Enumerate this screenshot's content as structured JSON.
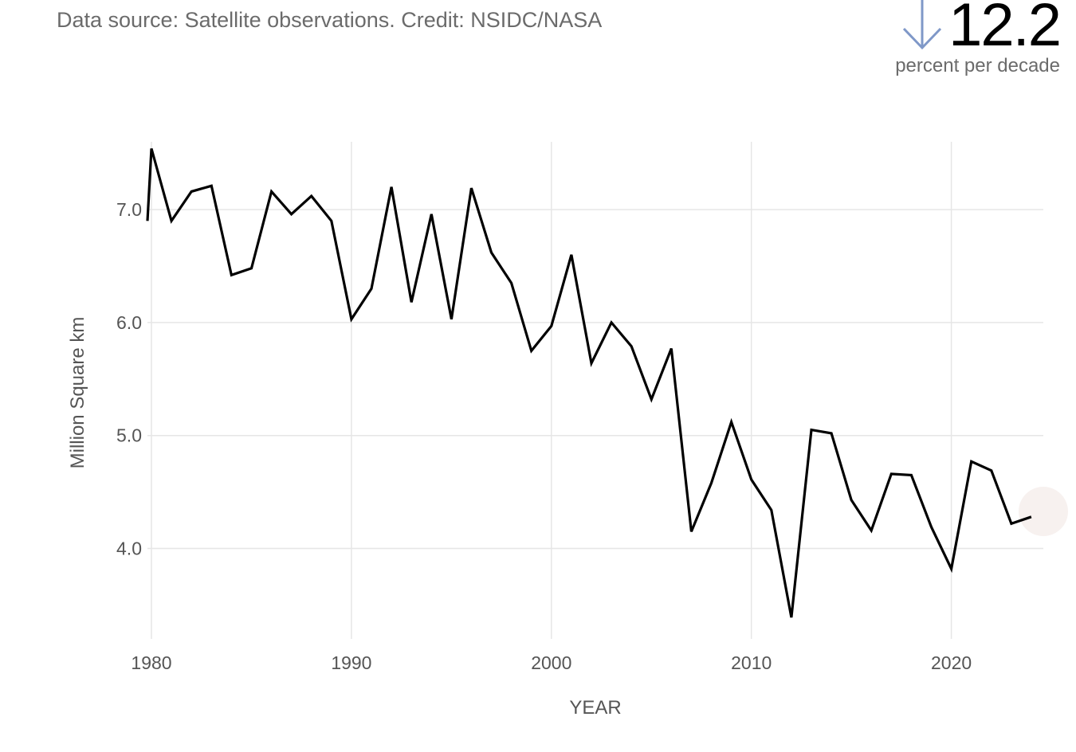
{
  "header": {
    "source": "Data source: Satellite observations. Credit: NSIDC/NASA",
    "stat_value": "12.2",
    "stat_unit": "percent per decade",
    "stat_direction": "down",
    "arrow_color": "#7f98c8"
  },
  "chart_data": {
    "type": "line",
    "title": "",
    "xlabel": "YEAR",
    "ylabel": "Million Square km",
    "xlim": [
      1979.8,
      2024.6
    ],
    "ylim": [
      3.2,
      7.6
    ],
    "xticks": [
      1980,
      1990,
      2000,
      2010,
      2020
    ],
    "yticks": [
      4.0,
      5.0,
      6.0,
      7.0
    ],
    "ytick_labels": [
      "4.0",
      "5.0",
      "6.0",
      "7.0"
    ],
    "grid": true,
    "line_color": "#000000",
    "grid_color": "#e6e6e6",
    "series": [
      {
        "x": [
          1979,
          1980,
          1981,
          1982,
          1983,
          1984,
          1985,
          1986,
          1987,
          1988,
          1989,
          1990,
          1991,
          1992,
          1993,
          1994,
          1995,
          1996,
          1997,
          1998,
          1999,
          2000,
          2001,
          2002,
          2003,
          2004,
          2005,
          2006,
          2007,
          2008,
          2009,
          2010,
          2011,
          2012,
          2013,
          2014,
          2015,
          2016,
          2017,
          2018,
          2019,
          2020,
          2021,
          2022,
          2023,
          2024
        ],
        "values": [
          6.9,
          7.54,
          6.9,
          7.16,
          7.21,
          6.42,
          6.48,
          7.16,
          6.96,
          7.12,
          6.9,
          6.03,
          6.3,
          7.2,
          6.18,
          6.96,
          6.03,
          7.19,
          6.62,
          6.35,
          5.75,
          5.97,
          6.6,
          5.64,
          6.0,
          5.79,
          5.32,
          5.77,
          4.15,
          4.58,
          5.12,
          4.61,
          4.34,
          3.39,
          5.05,
          5.02,
          4.43,
          4.16,
          4.66,
          4.65,
          4.19,
          3.82,
          4.77,
          4.69,
          4.22,
          4.28
        ]
      }
    ]
  }
}
